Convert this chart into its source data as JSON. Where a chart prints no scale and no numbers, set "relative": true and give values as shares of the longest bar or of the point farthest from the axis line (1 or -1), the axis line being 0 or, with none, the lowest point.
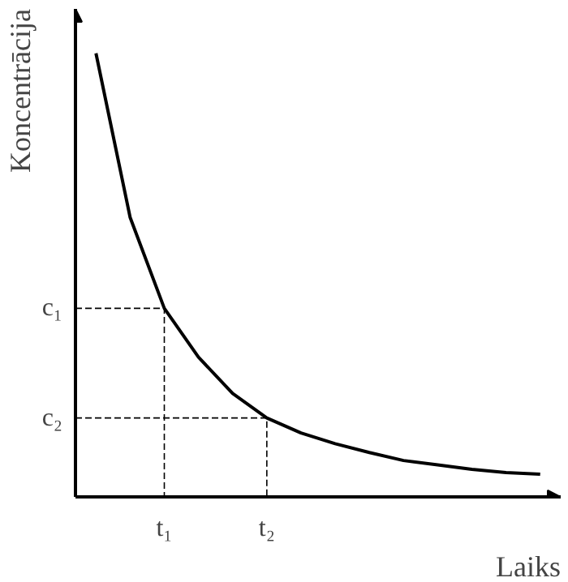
{
  "chart_data": {
    "type": "line",
    "relative": true,
    "xlabel": "Laiks",
    "ylabel": "Koncentrācija",
    "categories": [
      null,
      null,
      "t₁",
      null,
      null,
      "t₂",
      null,
      null,
      null,
      null,
      null,
      null,
      null,
      null
    ],
    "series": [
      {
        "color": "#000000",
        "values": [
          1.0,
          0.63,
          0.425,
          0.315,
          0.233,
          0.178,
          0.144,
          0.12,
          0.1,
          0.082,
          0.072,
          0.062,
          0.055,
          0.051
        ]
      }
    ],
    "annotations": [
      "c₁",
      "c₂"
    ],
    "grid": false,
    "marker": "none",
    "line_style": "solid"
  }
}
